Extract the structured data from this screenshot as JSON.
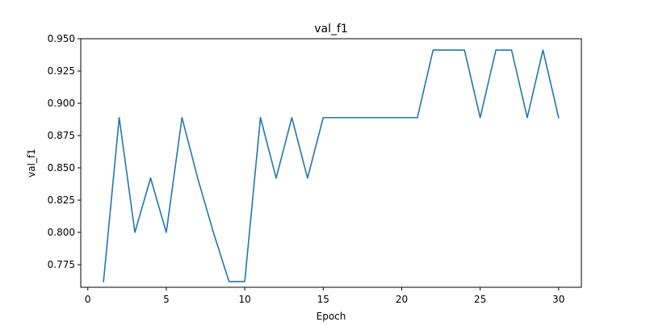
{
  "chart_data": {
    "type": "line",
    "title": "val_f1",
    "xlabel": "Epoch",
    "ylabel": "val_f1",
    "xlim": [
      -0.45,
      31.45
    ],
    "ylim": [
      0.7575,
      0.95
    ],
    "x_ticks": [
      0,
      5,
      10,
      15,
      20,
      25,
      30
    ],
    "y_ticks": [
      0.775,
      0.8,
      0.825,
      0.85,
      0.875,
      0.9,
      0.925,
      0.95
    ],
    "x_tick_labels": [
      "0",
      "5",
      "10",
      "15",
      "20",
      "25",
      "30"
    ],
    "y_tick_labels": [
      "0.775",
      "0.800",
      "0.825",
      "0.850",
      "0.875",
      "0.900",
      "0.925",
      "0.950"
    ],
    "grid": false,
    "series": [
      {
        "color": "#1f77b4",
        "x": [
          1,
          2,
          3,
          4,
          5,
          6,
          7,
          8,
          9,
          10,
          11,
          12,
          13,
          14,
          15,
          16,
          17,
          18,
          19,
          20,
          21,
          22,
          23,
          24,
          25,
          26,
          27,
          28,
          29,
          30
        ],
        "y": [
          0.7619,
          0.8889,
          0.8,
          0.8421,
          0.8,
          0.8889,
          0.8421,
          0.8,
          0.7619,
          0.7619,
          0.8889,
          0.8421,
          0.8889,
          0.8421,
          0.8889,
          0.8889,
          0.8889,
          0.8889,
          0.8889,
          0.8889,
          0.8889,
          0.9412,
          0.9412,
          0.9412,
          0.8889,
          0.9412,
          0.9412,
          0.8889,
          0.9412,
          0.8889
        ]
      }
    ]
  }
}
